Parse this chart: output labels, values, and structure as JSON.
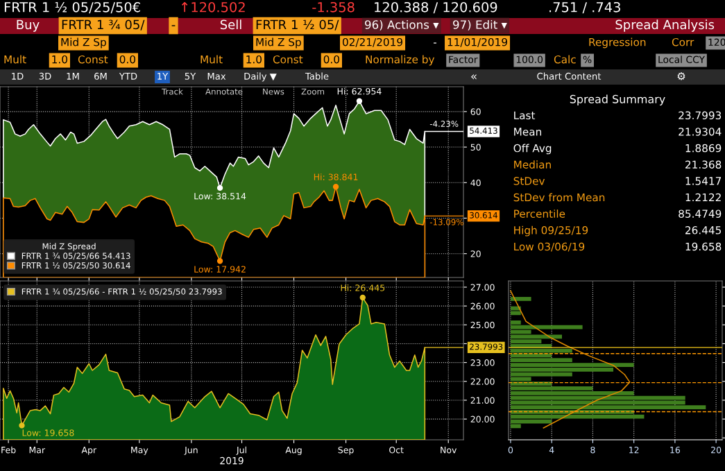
{
  "chart_data": [
    {
      "type": "area",
      "legend_title": "Mid Z Spread",
      "legend": "bottom left",
      "grid": true,
      "tick_labels": "y",
      "xlim": [
        "2019-02-21",
        "2019-11-24"
      ],
      "ylim": [
        13.3,
        67
      ],
      "xticks": [
        {
          "value": "2019-02-26",
          "label": null
        },
        {
          "value": "2019-03-15",
          "label": null
        },
        {
          "value": "2019-04-15",
          "label": null
        },
        {
          "value": "2019-05-15",
          "label": null
        },
        {
          "value": "2019-06-15",
          "label": null
        },
        {
          "value": "2019-07-15",
          "label": null
        },
        {
          "value": "2019-08-15",
          "label": null
        },
        {
          "value": "2019-09-15",
          "label": null
        },
        {
          "value": "2019-10-15",
          "label": null
        },
        {
          "value": "2019-11-15",
          "label": null
        }
      ],
      "yticks": [
        20,
        {
          "value": 30,
          "label": null
        },
        40,
        50,
        60
      ],
      "series": [
        {
          "name": "FRTR 1 ¾ 05/25/66 54.413",
          "color": "#ffffff",
          "x": [
            "2019-02-23",
            "2019-02-27",
            "2019-03-02",
            "2019-03-05",
            "2019-03-08",
            "2019-03-10",
            "2019-03-13",
            "2019-03-17",
            "2019-03-21",
            "2019-03-23",
            "2019-03-26",
            "2019-03-29",
            "2019-04-01",
            "2019-04-04",
            "2019-04-06",
            "2019-04-08",
            "2019-04-12",
            "2019-04-16",
            "2019-04-19",
            "2019-04-23",
            "2019-04-25",
            "2019-04-27",
            "2019-04-30",
            "2019-05-02",
            "2019-05-06",
            "2019-05-09",
            "2019-05-13",
            "2019-05-17",
            "2019-05-21",
            "2019-05-25",
            "2019-05-29",
            "2019-06-02",
            "2019-06-05",
            "2019-06-08",
            "2019-06-12",
            "2019-06-14",
            "2019-06-17",
            "2019-06-20",
            "2019-06-23",
            "2019-06-26",
            "2019-06-30",
            "2019-07-02",
            "2019-07-05",
            "2019-07-08",
            "2019-07-10",
            "2019-07-13",
            "2019-07-17",
            "2019-07-19",
            "2019-07-22",
            "2019-07-25",
            "2019-07-28",
            "2019-07-31",
            "2019-08-03",
            "2019-08-06",
            "2019-08-10",
            "2019-08-13",
            "2019-08-15",
            "2019-08-18",
            "2019-08-21",
            "2019-08-25",
            "2019-08-28",
            "2019-09-01",
            "2019-09-04",
            "2019-09-06",
            "2019-09-09",
            "2019-09-11",
            "2019-09-14",
            "2019-09-17",
            "2019-09-20",
            "2019-09-23",
            "2019-09-27",
            "2019-10-02",
            "2019-10-06",
            "2019-10-10",
            "2019-10-14",
            "2019-10-17",
            "2019-10-20",
            "2019-10-23",
            "2019-10-27",
            "2019-10-31",
            "2019-11-01"
          ],
          "values": [
            57.7,
            57.0,
            53.7,
            53.1,
            53.7,
            55.0,
            56.3,
            53.7,
            51.4,
            50.3,
            52.4,
            53.7,
            52.0,
            54.2,
            53.7,
            51.1,
            51.6,
            53.3,
            55.0,
            57.2,
            57.8,
            55.9,
            53.7,
            52.4,
            54.2,
            55.9,
            56.3,
            57.2,
            56.3,
            57.2,
            56.3,
            55.0,
            47.2,
            48.1,
            48.1,
            47.7,
            44.2,
            43.3,
            44.6,
            43.3,
            41.6,
            38.514,
            42.4,
            45.5,
            44.6,
            47.2,
            46.8,
            45.0,
            45.9,
            47.5,
            45.5,
            44.2,
            49.8,
            47.2,
            51.1,
            54.6,
            59.4,
            58.1,
            55.9,
            58.1,
            59.4,
            61.1,
            55.9,
            57.7,
            61.8,
            58.5,
            53.7,
            59.4,
            60.7,
            62.954,
            59.4,
            60.3,
            60.3,
            57.7,
            52.0,
            51.6,
            50.7,
            55.0,
            52.4,
            51.1,
            54.413
          ]
        },
        {
          "name": "FRTR 1 ½ 05/25/50 30.614",
          "color": "#ff8c00",
          "x": [
            "2019-02-23",
            "2019-02-27",
            "2019-03-01",
            "2019-03-04",
            "2019-03-08",
            "2019-03-11",
            "2019-03-14",
            "2019-03-17",
            "2019-03-21",
            "2019-03-23",
            "2019-03-26",
            "2019-03-30",
            "2019-04-02",
            "2019-04-05",
            "2019-04-08",
            "2019-04-12",
            "2019-04-15",
            "2019-04-17",
            "2019-04-21",
            "2019-04-25",
            "2019-04-27",
            "2019-05-01",
            "2019-05-05",
            "2019-05-09",
            "2019-05-13",
            "2019-05-16",
            "2019-05-19",
            "2019-05-22",
            "2019-05-26",
            "2019-05-30",
            "2019-06-02",
            "2019-06-06",
            "2019-06-10",
            "2019-06-14",
            "2019-06-17",
            "2019-06-21",
            "2019-06-25",
            "2019-06-28",
            "2019-07-02",
            "2019-07-05",
            "2019-07-08",
            "2019-07-11",
            "2019-07-15",
            "2019-07-19",
            "2019-07-22",
            "2019-07-26",
            "2019-07-30",
            "2019-08-02",
            "2019-08-06",
            "2019-08-09",
            "2019-08-13",
            "2019-08-15",
            "2019-08-18",
            "2019-08-21",
            "2019-08-25",
            "2019-08-27",
            "2019-08-30",
            "2019-09-02",
            "2019-09-05",
            "2019-09-07",
            "2019-09-09",
            "2019-09-12",
            "2019-09-14",
            "2019-09-17",
            "2019-09-20",
            "2019-09-23",
            "2019-09-27",
            "2019-09-30",
            "2019-10-04",
            "2019-10-08",
            "2019-10-11",
            "2019-10-14",
            "2019-10-17",
            "2019-10-20",
            "2019-10-23",
            "2019-10-27",
            "2019-10-31",
            "2019-11-01"
          ],
          "values": [
            35.7,
            35.5,
            33.3,
            33.1,
            33.5,
            35.0,
            35.5,
            32.9,
            29.8,
            29.4,
            31.6,
            31.1,
            33.3,
            31.6,
            29.0,
            28.8,
            29.8,
            32.4,
            32.3,
            34.6,
            33.3,
            30.3,
            32.9,
            33.7,
            32.9,
            35.0,
            35.9,
            36.3,
            35.5,
            35.0,
            33.3,
            27.7,
            28.1,
            26.5,
            24.2,
            23.3,
            22.9,
            22.0,
            17.942,
            23.3,
            25.9,
            26.5,
            25.5,
            24.6,
            26.8,
            27.2,
            24.6,
            27.2,
            28.1,
            30.7,
            29.8,
            36.8,
            37.2,
            32.9,
            33.3,
            34.6,
            35.9,
            37.7,
            35.0,
            35.0,
            38.841,
            32.9,
            29.8,
            35.0,
            34.6,
            38.1,
            32.9,
            35.0,
            35.5,
            34.6,
            33.3,
            29.0,
            28.1,
            28.1,
            32.4,
            28.5,
            28.1,
            30.614
          ]
        }
      ],
      "annotations": [
        {
          "text": "Hi: 62.954",
          "x": "2019-09-23",
          "y": 62.954
        },
        {
          "text": "Low: 38.514",
          "x": "2019-07-02",
          "y": 38.514
        },
        {
          "text": "Hi: 38.841",
          "x": "2019-09-09",
          "y": 38.841
        },
        {
          "text": "Low: 17.942",
          "x": "2019-07-02",
          "y": 17.942
        },
        {
          "text": "-4.23%",
          "x": "2019-11-01",
          "y": 54.413
        },
        "54.413",
        {
          "text": "-13.09%",
          "x": "2019-11-01",
          "y": 30.614
        },
        "30.614"
      ]
    },
    {
      "type": "area",
      "legend": "top left",
      "grid": true,
      "xlabel": "2019",
      "xlim": [
        "2019-02-21",
        "2019-11-24"
      ],
      "ylim": [
        18.9,
        27.33
      ],
      "xticks": [
        {
          "value": "2019-02-26",
          "label": "Feb"
        },
        {
          "value": "2019-03-15",
          "label": "Mar"
        },
        {
          "value": "2019-04-15",
          "label": "Apr"
        },
        {
          "value": "2019-05-15",
          "label": "May"
        },
        {
          "value": "2019-06-15",
          "label": "Jun"
        },
        {
          "value": "2019-07-15",
          "label": "Jul"
        },
        {
          "value": "2019-08-15",
          "label": "Aug"
        },
        {
          "value": "2019-09-15",
          "label": "Sep"
        },
        {
          "value": "2019-10-15",
          "label": "Oct"
        },
        {
          "value": "2019-11-15",
          "label": "Nov"
        }
      ],
      "yticks": [
        {
          "value": 20,
          "label": "20.00"
        },
        {
          "value": 21,
          "label": "21.00"
        },
        {
          "value": 22,
          "label": "22.00"
        },
        {
          "value": 23,
          "label": "23.00"
        },
        {
          "value": 24,
          "label": null
        },
        {
          "value": 25,
          "label": "25.00"
        },
        {
          "value": 26,
          "label": "26.00"
        },
        {
          "value": 27,
          "label": "27.00"
        }
      ],
      "series": [
        {
          "name": "FRTR 1 ¾ 05/25/66 - FRTR 1 ½ 05/25/50 23.7993",
          "color": "#e6c020",
          "x": [
            "2019-02-23",
            "2019-02-25",
            "2019-02-27",
            "2019-03-01",
            "2019-03-03",
            "2019-03-04",
            "2019-03-06",
            "2019-03-11",
            "2019-03-14",
            "2019-03-17",
            "2019-03-20",
            "2019-03-23",
            "2019-03-25",
            "2019-03-28",
            "2019-03-31",
            "2019-04-03",
            "2019-04-06",
            "2019-04-08",
            "2019-04-11",
            "2019-04-15",
            "2019-04-17",
            "2019-04-21",
            "2019-04-25",
            "2019-04-27",
            "2019-05-02",
            "2019-05-06",
            "2019-05-09",
            "2019-05-12",
            "2019-05-17",
            "2019-05-21",
            "2019-05-23",
            "2019-05-28",
            "2019-06-02",
            "2019-06-03",
            "2019-06-08",
            "2019-06-13",
            "2019-06-17",
            "2019-06-23",
            "2019-06-27",
            "2019-07-02",
            "2019-07-07",
            "2019-07-11",
            "2019-07-16",
            "2019-07-20",
            "2019-07-25",
            "2019-07-30",
            "2019-08-03",
            "2019-08-06",
            "2019-08-08",
            "2019-08-11",
            "2019-08-14",
            "2019-08-17",
            "2019-08-20",
            "2019-08-23",
            "2019-08-28",
            "2019-08-31",
            "2019-09-03",
            "2019-09-06",
            "2019-09-07",
            "2019-09-11",
            "2019-09-15",
            "2019-09-19",
            "2019-09-23",
            "2019-09-25",
            "2019-09-28",
            "2019-09-30",
            "2019-10-03",
            "2019-10-08",
            "2019-10-11",
            "2019-10-14",
            "2019-10-17",
            "2019-10-21",
            "2019-10-23",
            "2019-10-26",
            "2019-10-28",
            "2019-10-30",
            "2019-11-01"
          ],
          "values": [
            21.63,
            21.1,
            21.5,
            21.1,
            20.33,
            20.86,
            19.658,
            20.45,
            20.5,
            20.45,
            20.7,
            20.28,
            21.27,
            21.35,
            21.68,
            21.43,
            21.9,
            22.75,
            22.42,
            22.94,
            22.58,
            22.88,
            23.44,
            22.58,
            22.45,
            21.6,
            21.52,
            21.19,
            21.27,
            20.86,
            21.27,
            20.86,
            20.74,
            19.87,
            20.12,
            20.94,
            20.6,
            21.19,
            21.47,
            20.6,
            21.35,
            21.1,
            20.78,
            20.28,
            20.2,
            19.96,
            21.19,
            21.43,
            20.45,
            20.04,
            21.35,
            21.93,
            23.65,
            23.24,
            24.47,
            23.9,
            24.39,
            23.16,
            21.84,
            23.98,
            24.47,
            24.8,
            25.05,
            26.445,
            26.03,
            25.05,
            25.13,
            25.05,
            23.4,
            22.75,
            23.08,
            22.58,
            22.58,
            23.4,
            22.75,
            23.08,
            23.7993
          ]
        }
      ],
      "annotations": [
        {
          "text": "Hi: 26.445",
          "x": "2019-09-25",
          "y": 26.445
        },
        {
          "text": "Low: 19.658",
          "x": "2019-03-06",
          "y": 19.658
        },
        "23.7993"
      ]
    },
    {
      "type": "histogram",
      "orientation": "horizontal",
      "color": "#3f7f1e",
      "grid": "x",
      "tick_labels": "x",
      "xlim": [
        -0.2,
        20.6
      ],
      "ylim": [
        18.9,
        27.33
      ],
      "xticks": [
        0,
        4,
        8,
        12,
        16,
        20
      ],
      "bins": [
        19.5,
        19.75,
        20.0,
        20.25,
        20.5,
        20.75,
        21.0,
        21.25,
        21.5,
        21.75,
        22.0,
        22.25,
        22.5,
        22.75,
        23.0,
        23.25,
        23.5,
        23.75,
        24.0,
        24.25,
        24.5,
        24.75,
        25.0,
        25.25,
        25.5,
        25.75,
        26.0,
        26.25,
        26.5
      ],
      "values": [
        1,
        4,
        13,
        12,
        19,
        17,
        17,
        12,
        8,
        4,
        2,
        6,
        10,
        12,
        6,
        4,
        6,
        4,
        3,
        5,
        2,
        7,
        1,
        0,
        1,
        1,
        0,
        2
      ],
      "series": [
        {
          "type": "line",
          "color": "#e08a00",
          "x": [
            19.53,
            20.39,
            21.0,
            21.5,
            21.96,
            22.36,
            22.85,
            23.34,
            23.88,
            24.32,
            25.18,
            26.8
          ],
          "values": [
            3.2,
            6.2,
            8.4,
            10.8,
            11.6,
            11.1,
            10.0,
            7.7,
            5.5,
            3.9,
            1.5,
            0.0
          ]
        }
      ],
      "ref_lines": [
        {
          "axis": "y",
          "value": 20.3887,
          "color": "#ff9900",
          "line_style": "dashed"
        },
        {
          "axis": "y",
          "value": 21.9304,
          "color": "#ff9900",
          "line_style": "dashed"
        },
        {
          "axis": "y",
          "value": 23.4721,
          "color": "#ff9900",
          "line_style": "dashed"
        },
        {
          "axis": "y",
          "value": 23.7993,
          "color": "#f0c419",
          "line_style": "solid"
        }
      ]
    },
    {
      "type": "other",
      "title": "Spread Summary",
      "annotations": [
        "Last",
        "23.7993",
        "Mean",
        "21.9304",
        "Off Avg",
        "1.8869",
        "Median",
        "21.368",
        "StDev",
        "1.5417",
        "StDev from Mean",
        "1.2122",
        "Percentile",
        "85.4749",
        "High 09/25/19",
        "26.445",
        "Low 03/06/19",
        "19.658"
      ],
      "colors": [
        "#ffffff",
        "#ffffff",
        "#ffffff",
        "#ffffff",
        "#ffffff",
        "#ffffff",
        "#f39c12",
        "#ffffff",
        "#f39c12",
        "#ffffff",
        "#f39c12",
        "#ffffff",
        "#f39c12",
        "#ffffff",
        "#f39c12",
        "#ffffff",
        "#f39c12",
        "#ffffff"
      ]
    },
    {
      "type": "other",
      "annotations": [
        "FRTR 1 ½ 05/25/50€",
        "↑120.502",
        "-1.358",
        "120.388 / 120.609",
        ".751 / .743",
        "Buy",
        "FRTR 1 ¾ 05/",
        "-",
        "Sell",
        "FRTR 1 ½ 05/",
        "96) Actions ▾",
        "97) Edit ▾",
        "Spread Analysis",
        "Mid Z Sp",
        "Mid Z Sp",
        "02/21/2019",
        "-",
        "11/01/2019",
        "Regression",
        "Corr",
        "120",
        "Mult",
        "1.0",
        "Const",
        "0.0",
        "Mult",
        "1.0",
        "Const",
        "0.0",
        "Normalize by",
        "Factor",
        "100.0",
        "Calc",
        "%",
        "Local CCY",
        "1D",
        "3D",
        "1M",
        "6M",
        "YTD",
        "1Y",
        "5Y",
        "Max",
        "Daily ▼",
        "Table",
        "«",
        "Chart Content",
        "⚙",
        "Track",
        "Annotate",
        "News",
        "Zoom"
      ]
    }
  ]
}
